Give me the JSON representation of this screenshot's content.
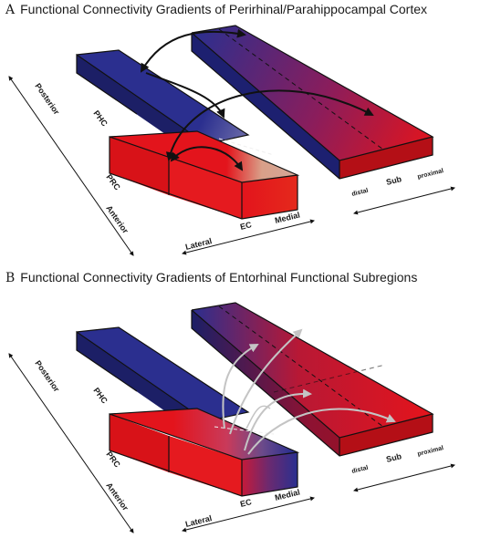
{
  "panels": [
    {
      "letter": "A",
      "title": "Functional Connectivity Gradients of Perirhinal/Parahippocampal Cortex",
      "labels": {
        "phc": "PHC",
        "prc": "PRC",
        "posterior": "Posterior",
        "anterior": "Anterior",
        "lateral": "Lateral",
        "ec": "EC",
        "medial": "Medial",
        "distal": "distal",
        "sub": "Sub",
        "proximal": "proximal"
      }
    },
    {
      "letter": "B",
      "title": "Functional Connectivity Gradients of Entorhinal Functional Subregions",
      "labels": {
        "phc": "PHC",
        "prc": "PRC",
        "posterior": "Posterior",
        "anterior": "Anterior",
        "lateral": "Lateral",
        "ec": "EC",
        "medial": "Medial",
        "distal": "distal",
        "sub": "Sub",
        "proximal": "proximal"
      }
    }
  ],
  "colors": {
    "blue": "#2b2f8f",
    "blue_dark": "#1c1f66",
    "red": "#e3141c",
    "red_dark": "#a30f14",
    "tan": "#d8a48a",
    "arrow_black": "#111111",
    "arrow_grey": "#bfbfbf"
  }
}
